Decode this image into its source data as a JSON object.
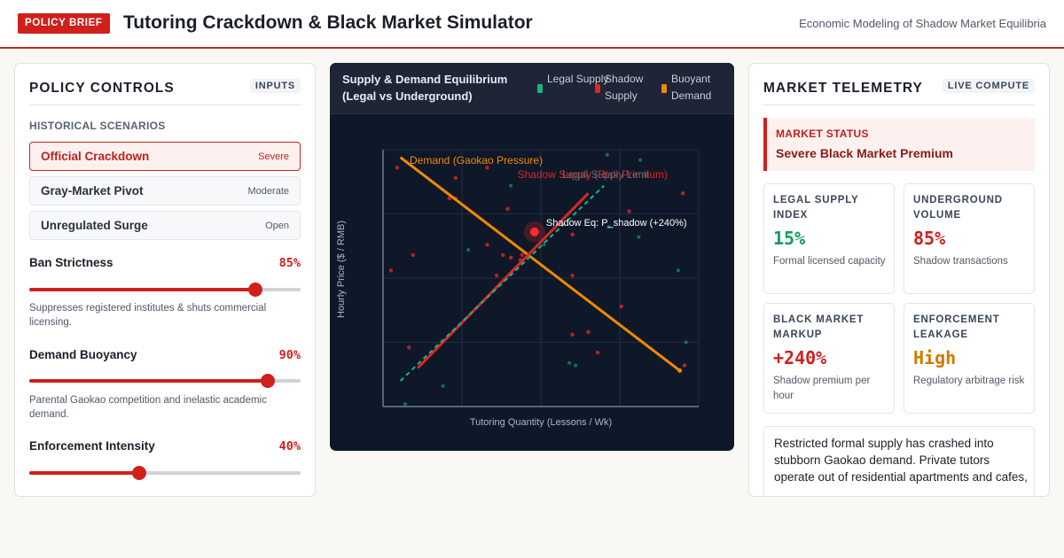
{
  "header": {
    "badge": "POLICY BRIEF",
    "title": "Tutoring Crackdown & Black Market Simulator",
    "subtitle": "Economic Modeling of Shadow Market Equilibria"
  },
  "controls": {
    "title": "POLICY CONTROLS",
    "tag": "INPUTS",
    "scenarios_label": "HISTORICAL SCENARIOS",
    "scenarios": [
      {
        "label": "Official Crackdown",
        "tag": "Severe",
        "active": true
      },
      {
        "label": "Gray-Market Pivot",
        "tag": "Moderate",
        "active": false
      },
      {
        "label": "Unregulated Surge",
        "tag": "Open",
        "active": false
      }
    ],
    "sliders": [
      {
        "label": "Ban Strictness",
        "value": 85,
        "display": "85%",
        "desc": "Suppresses registered institutes & shuts commercial licensing."
      },
      {
        "label": "Demand Buoyancy",
        "value": 90,
        "display": "90%",
        "desc": "Parental Gaokao competition and inelastic academic demand."
      },
      {
        "label": "Enforcement Intensity",
        "value": 40,
        "display": "40%",
        "desc": ""
      }
    ]
  },
  "chart_panel": {
    "title": "Supply & Demand Equilibrium (Legal vs Underground)",
    "legend": [
      {
        "label": "Legal Supply",
        "color": "#10b981"
      },
      {
        "label": "Shadow Supply",
        "color": "#dc2626"
      },
      {
        "label": "Buoyant Demand",
        "color": "#f08a00"
      }
    ]
  },
  "chart_data": {
    "type": "line",
    "xlabel": "Tutoring Quantity (Lessons / Wk)",
    "ylabel": "Hourly Price ($ / RMB)",
    "grid": true,
    "series": [
      {
        "name": "Demand (Gaokao Pressure)",
        "color": "#f08a00",
        "points": [
          [
            0.055,
            0.03
          ],
          [
            0.94,
            0.86
          ]
        ]
      },
      {
        "name": "Shadow Supply (Risk Premium)",
        "color": "#dc2626",
        "points": [
          [
            0.11,
            0.85
          ],
          [
            0.65,
            0.17
          ]
        ]
      },
      {
        "name": "Legal Supply Limit",
        "color": "#10b981",
        "dashed": true,
        "points": [
          [
            0.055,
            0.9
          ],
          [
            0.7,
            0.14
          ]
        ]
      }
    ],
    "equilibrium": {
      "label": "Shadow Eq: P_shadow (+240%)",
      "point": [
        0.48,
        0.32
      ]
    },
    "scatter_red": [
      [
        0.045,
        0.07
      ],
      [
        0.23,
        0.19
      ],
      [
        0.21,
        0.19
      ],
      [
        0.33,
        0.07
      ],
      [
        0.23,
        0.11
      ],
      [
        0.395,
        0.23
      ],
      [
        0.33,
        0.37
      ],
      [
        0.44,
        0.41
      ],
      [
        0.38,
        0.41
      ],
      [
        0.36,
        0.49
      ],
      [
        0.435,
        0.43
      ],
      [
        0.405,
        0.42
      ],
      [
        0.095,
        0.41
      ],
      [
        0.025,
        0.47
      ],
      [
        0.6,
        0.33
      ],
      [
        0.78,
        0.24
      ],
      [
        0.95,
        0.17
      ],
      [
        0.755,
        0.61
      ],
      [
        0.6,
        0.49
      ],
      [
        0.65,
        0.71
      ],
      [
        0.6,
        0.72
      ],
      [
        0.68,
        0.79
      ],
      [
        0.955,
        0.84
      ],
      [
        0.082,
        0.77
      ]
    ],
    "scatter_green": [
      [
        0.405,
        0.14
      ],
      [
        0.71,
        0.02
      ],
      [
        0.815,
        0.04
      ],
      [
        0.27,
        0.39
      ],
      [
        0.51,
        0.37
      ],
      [
        0.48,
        0.33
      ],
      [
        0.715,
        0.3
      ],
      [
        0.61,
        0.84
      ],
      [
        0.81,
        0.34
      ],
      [
        0.935,
        0.47
      ],
      [
        0.96,
        0.75
      ],
      [
        0.59,
        0.83
      ],
      [
        0.19,
        0.92
      ],
      [
        0.07,
        0.99
      ]
    ]
  },
  "telemetry": {
    "title": "MARKET TELEMETRY",
    "tag": "LIVE COMPUTE",
    "status_label": "MARKET STATUS",
    "status_value": "Severe Black Market Premium",
    "metrics": [
      {
        "label": "LEGAL SUPPLY INDEX",
        "value": "15%",
        "sub": "Formal licensed capacity",
        "color": "#0e9f5e"
      },
      {
        "label": "UNDERGROUND VOLUME",
        "value": "85%",
        "sub": "Shadow transactions",
        "color": "#d0201c"
      },
      {
        "label": "BLACK MARKET MARKUP",
        "value": "+240%",
        "sub": "Shadow premium per hour",
        "color": "#d0201c"
      },
      {
        "label": "ENFORCEMENT LEAKAGE",
        "value": "High",
        "sub": "Regulatory arbitrage risk",
        "color": "#d17a00"
      }
    ],
    "summary": "Restricted formal supply has crashed into stubborn Gaokao demand. Private tutors operate out of residential apartments and cafes,"
  }
}
